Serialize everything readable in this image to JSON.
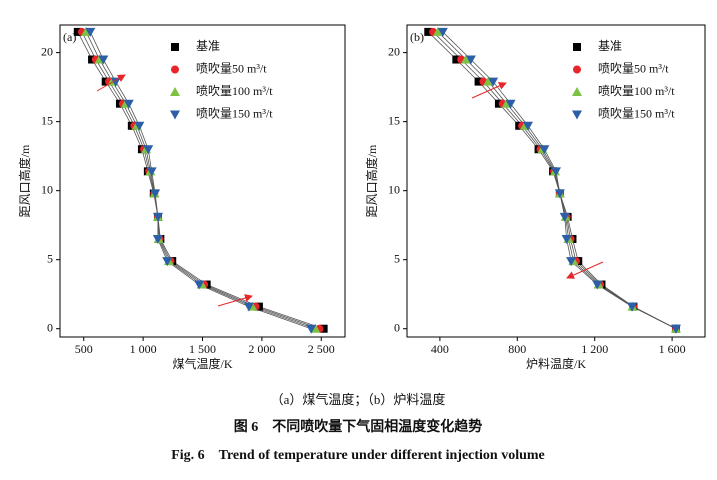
{
  "chart_data": [
    {
      "type": "line",
      "annotation": "(a)",
      "x_label": "煤气温度/K",
      "y_label": "距风口高度/m",
      "xlim": [
        300,
        2700
      ],
      "xticks": [
        500,
        {
          "value": 1000,
          "label": "1 000"
        },
        {
          "value": 1500,
          "label": "1 500"
        },
        {
          "value": 2000,
          "label": "2 000"
        },
        {
          "value": 2500,
          "label": "2 500"
        }
      ],
      "ylim": [
        -0.6,
        22
      ],
      "yticks": [
        0,
        5,
        10,
        15,
        20
      ],
      "y": [
        21.5,
        19.5,
        17.9,
        16.3,
        14.7,
        13.0,
        11.4,
        9.8,
        8.1,
        6.5,
        4.9,
        3.2,
        1.6,
        0
      ],
      "series": [
        {
          "name": "基准",
          "color": "#000000",
          "marker": "square",
          "x": [
            450,
            570,
            685,
            805,
            905,
            990,
            1040,
            1090,
            1125,
            1145,
            1245,
            1535,
            1975,
            2520
          ]
        },
        {
          "name": "喷吹量50 m³/t",
          "color": "#e8262a",
          "marker": "circle",
          "x": [
            485,
            602,
            713,
            830,
            926,
            1008,
            1051,
            1094,
            1125,
            1138,
            1231,
            1514,
            1947,
            2485
          ]
        },
        {
          "name": "喷吹量100 m³/t",
          "color": "#7dc242",
          "marker": "triangle-up",
          "x": [
            520,
            633,
            741,
            854,
            947,
            1025,
            1061,
            1097,
            1125,
            1131,
            1217,
            1493,
            1919,
            2450
          ]
        },
        {
          "name": "喷吹量150 m³/t",
          "color": "#2d5fa8",
          "marker": "triangle-down",
          "x": [
            555,
            665,
            769,
            879,
            968,
            1043,
            1072,
            1101,
            1125,
            1124,
            1203,
            1472,
            1891,
            2415
          ]
        }
      ]
    },
    {
      "type": "line",
      "annotation": "(b)",
      "x_label": "炉料温度/K",
      "y_label": "距风口高度/m",
      "xlim": [
        230,
        1770
      ],
      "xticks": [
        400,
        800,
        {
          "value": 1200,
          "label": "1 200"
        },
        {
          "value": 1600,
          "label": "1 600"
        }
      ],
      "ylim": [
        -0.6,
        22
      ],
      "yticks": [
        0,
        5,
        10,
        15,
        20
      ],
      "y": [
        21.5,
        19.5,
        17.9,
        16.3,
        14.7,
        13.0,
        11.4,
        9.8,
        8.1,
        6.5,
        4.9,
        3.2,
        1.6,
        0
      ],
      "series": [
        {
          "name": "基准",
          "color": "#000000",
          "marker": "square",
          "x": [
            340,
            485,
            600,
            705,
            810,
            910,
            985,
            1020,
            1060,
            1085,
            1115,
            1235,
            1400,
            1620
          ]
        },
        {
          "name": "喷吹量50 m³/t",
          "color": "#e8262a",
          "marker": "circle",
          "x": [
            365,
            510,
            625,
            725,
            825,
            920,
            990,
            1020,
            1055,
            1075,
            1103,
            1228,
            1398,
            1620
          ]
        },
        {
          "name": "喷吹量100 m³/t",
          "color": "#7dc242",
          "marker": "triangle-up",
          "x": [
            390,
            535,
            650,
            745,
            840,
            930,
            995,
            1020,
            1050,
            1065,
            1090,
            1220,
            1395,
            1620
          ]
        },
        {
          "name": "喷吹量150 m³/t",
          "color": "#2d5fa8",
          "marker": "triangle-down",
          "x": [
            415,
            560,
            675,
            765,
            855,
            940,
            1000,
            1020,
            1045,
            1055,
            1078,
            1213,
            1393,
            1620
          ]
        }
      ]
    }
  ],
  "figure": {
    "subcaption": "（a）煤气温度；（b）炉料温度",
    "title_cn": "图 6　不同喷吹量下气固相温度变化趋势",
    "title_en": "Fig. 6　Trend of temperature under different injection volume"
  }
}
